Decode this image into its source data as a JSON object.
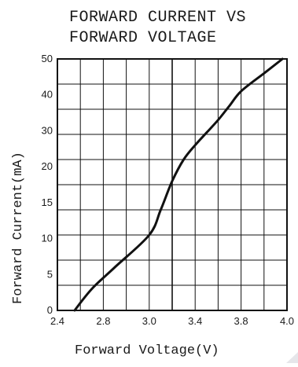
{
  "chart_data": {
    "type": "line",
    "title_lines": [
      "FORWARD CURRENT VS",
      "FORWARD VOLTAGE"
    ],
    "xlabel": "Forward   Voltage(V)",
    "ylabel": "Forward   Current(mA)",
    "xlim": [
      2.4,
      4.0
    ],
    "ylim": [
      0,
      50
    ],
    "x_ticks": [
      "2.4",
      "2.8",
      "3.0",
      "3.4",
      "3.8",
      "4.0"
    ],
    "y_ticks": [
      "0",
      "5",
      "10",
      "15",
      "20",
      "30",
      "40",
      "50"
    ],
    "grid": true,
    "series": [
      {
        "x": [
          2.55,
          2.7,
          2.85,
          3.0,
          3.1,
          3.2,
          3.3,
          3.4,
          3.5,
          3.6,
          3.7,
          3.8,
          3.9,
          3.98
        ],
        "y": [
          0,
          3,
          6,
          10.5,
          14,
          18,
          22,
          26,
          29.5,
          33,
          37,
          41,
          46,
          50
        ]
      }
    ]
  }
}
